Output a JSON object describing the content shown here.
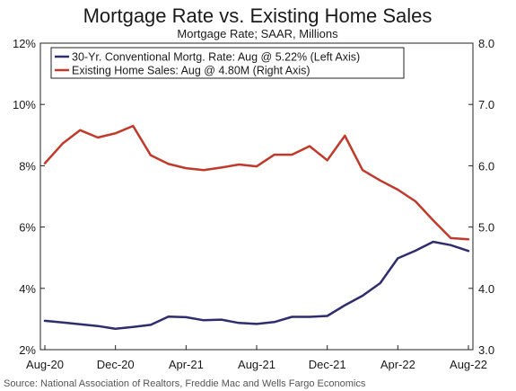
{
  "chart_data": {
    "type": "line",
    "title": "Mortgage Rate vs. Existing Home Sales",
    "subtitle": "Mortgage Rate; SAAR, Millions",
    "x": [
      "Aug-20",
      "Sep-20",
      "Oct-20",
      "Nov-20",
      "Dec-20",
      "Jan-21",
      "Feb-21",
      "Mar-21",
      "Apr-21",
      "May-21",
      "Jun-21",
      "Jul-21",
      "Aug-21",
      "Sep-21",
      "Oct-21",
      "Nov-21",
      "Dec-21",
      "Jan-22",
      "Feb-22",
      "Mar-22",
      "Apr-22",
      "May-22",
      "Jun-22",
      "Jul-22",
      "Aug-22"
    ],
    "x_tick_labels": [
      "Aug-20",
      "Dec-20",
      "Apr-21",
      "Aug-21",
      "Dec-21",
      "Apr-22",
      "Aug-22"
    ],
    "left_axis": {
      "ylim": [
        2,
        12
      ],
      "tick_labels": [
        "2%",
        "4%",
        "6%",
        "8%",
        "10%",
        "12%"
      ],
      "tick_values": [
        2,
        4,
        6,
        8,
        10,
        12
      ]
    },
    "right_axis": {
      "ylim": [
        3.0,
        8.0
      ],
      "tick_labels": [
        "3.0",
        "4.0",
        "5.0",
        "6.0",
        "7.0",
        "8.0"
      ],
      "tick_values": [
        3,
        4,
        5,
        6,
        7,
        8
      ]
    },
    "series": [
      {
        "name": "30-Yr. Conventional Mortg. Rate: Aug @ 5.22% (Left Axis)",
        "axis": "left",
        "color": "#2e2d6e",
        "values": [
          2.94,
          2.89,
          2.83,
          2.77,
          2.68,
          2.74,
          2.81,
          3.08,
          3.06,
          2.96,
          2.98,
          2.87,
          2.84,
          2.9,
          3.07,
          3.07,
          3.1,
          3.45,
          3.76,
          4.17,
          4.98,
          5.23,
          5.52,
          5.41,
          5.22
        ]
      },
      {
        "name": "Existing Home Sales: Aug @ 4.80M (Right Axis)",
        "axis": "right",
        "color": "#c0392b",
        "values": [
          6.04,
          6.36,
          6.58,
          6.46,
          6.53,
          6.65,
          6.17,
          6.03,
          5.96,
          5.93,
          5.97,
          6.02,
          5.99,
          6.18,
          6.18,
          6.32,
          6.09,
          6.49,
          5.93,
          5.76,
          5.61,
          5.42,
          5.11,
          4.82,
          4.8
        ]
      }
    ],
    "grid": false,
    "legend": "top-left",
    "source": "Source: National Association of Realtors, Freddie Mac and Wells Fargo Economics"
  }
}
